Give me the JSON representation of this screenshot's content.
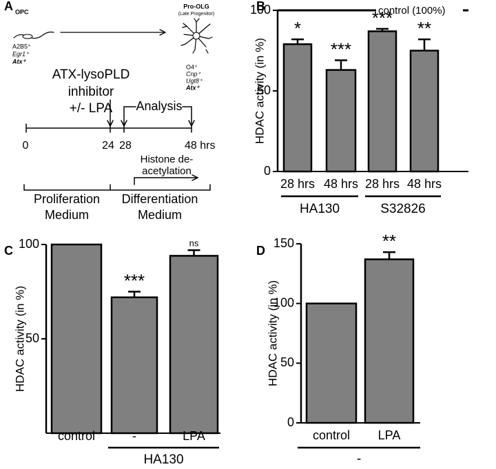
{
  "diagram": {
    "panel": "A",
    "opc": {
      "name": "OPC",
      "markers": [
        "A2B5⁺",
        "Egr1⁺",
        "Atx⁺"
      ]
    },
    "pro_olg": {
      "name": "Pro-OLG",
      "subtitle": "(Late Progenitor)",
      "markers": [
        "O4⁺",
        "Cnp⁺",
        "Ugt8⁺",
        "Atx⁺"
      ]
    },
    "treatment": [
      "ATX-lysoPLD",
      "inhibitor",
      "+/- LPA"
    ],
    "analysis": "Analysis",
    "timeline": [
      "0",
      "24",
      "28",
      "48 hrs"
    ],
    "deacetylation": [
      "Histone de-",
      "acetylation"
    ],
    "media": [
      [
        "Proliferation",
        "Medium"
      ],
      [
        "Differentiation",
        "Medium"
      ]
    ]
  },
  "chart_data": [
    {
      "type": "bar",
      "panel": "B",
      "y_label": "HDAC activity (in %)",
      "categories": [
        "28 hrs",
        "48 hrs",
        "28 hrs",
        "48 hrs"
      ],
      "groups": [
        "HA130",
        "S32826"
      ],
      "values": [
        79,
        63,
        87,
        75
      ],
      "errors": [
        3,
        6,
        1.5,
        7
      ],
      "annotations": [
        "*",
        "***",
        "***",
        "**"
      ],
      "reference": {
        "value": 100,
        "label": "control (100%)"
      },
      "color": "#808080",
      "ylim": [
        0,
        100
      ],
      "yticks": [
        0,
        50,
        100
      ]
    },
    {
      "type": "bar",
      "panel": "C",
      "y_label": "HDAC activity (in %)",
      "categories": [
        "control",
        "-",
        "LPA"
      ],
      "groups": [
        "HA130"
      ],
      "values": [
        100,
        72,
        94
      ],
      "errors": [
        null,
        3,
        3
      ],
      "annotations": [
        null,
        "***",
        "ns"
      ],
      "color": "#808080",
      "ylim": [
        0,
        100
      ],
      "yticks": [
        50,
        100
      ]
    },
    {
      "type": "bar",
      "panel": "D",
      "y_label": "HDAC activity (in %)",
      "categories": [
        "control",
        "LPA"
      ],
      "groups": [
        "-"
      ],
      "values": [
        100,
        137
      ],
      "errors": [
        null,
        6
      ],
      "annotations": [
        null,
        "**"
      ],
      "color": "#808080",
      "ylim": [
        0,
        150
      ],
      "yticks": [
        0,
        50,
        100,
        150
      ]
    }
  ]
}
